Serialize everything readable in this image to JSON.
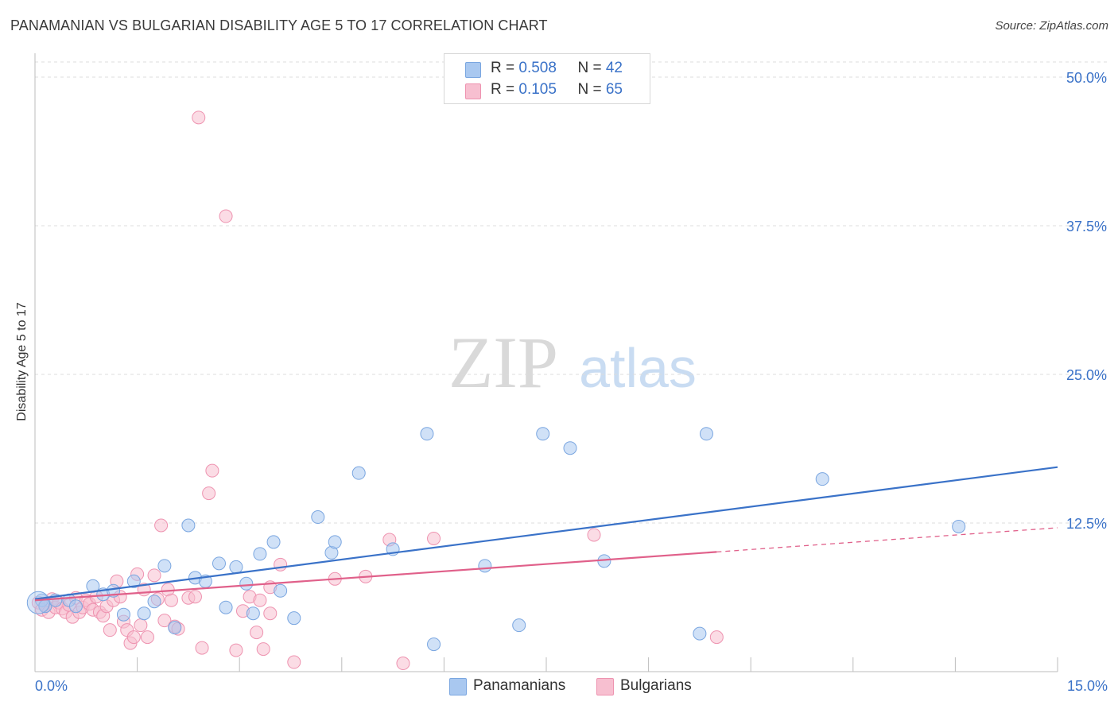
{
  "title": "PANAMANIAN VS BULGARIAN DISABILITY AGE 5 TO 17 CORRELATION CHART",
  "source": "Source: ZipAtlas.com",
  "watermark": {
    "zip": "ZIP",
    "atlas": "atlas"
  },
  "legend": {
    "rows": [
      {
        "r_label": "R = ",
        "r_value": "0.508",
        "n_label": "N = ",
        "n_value": "42",
        "color": "#a9c8f0",
        "border": "#7aa6e0"
      },
      {
        "r_label": "R = ",
        "r_value": "0.105",
        "n_label": "N = ",
        "n_value": "65",
        "color": "#f7bfd0",
        "border": "#ee93b0"
      }
    ]
  },
  "bottom_legend": {
    "panamanians": "Panamanians",
    "bulgarians": "Bulgarians"
  },
  "colors": {
    "blue": "#3a72c8",
    "pink": "#e0608a",
    "blue_fill": "#a9c8f0",
    "pink_fill": "#f7bfd0",
    "grid": "#dcdcdc"
  },
  "chart_data": {
    "type": "scatter",
    "title": "PANAMANIAN VS BULGARIAN DISABILITY AGE 5 TO 17 CORRELATION CHART",
    "xlabel": "",
    "ylabel": "Disability Age 5 to 17",
    "xlim": [
      0,
      15
    ],
    "ylim": [
      0,
      50
    ],
    "x_tick_labels": [
      "0.0%",
      "15.0%"
    ],
    "y_ticks": [
      12.5,
      25.0,
      37.5,
      50.0
    ],
    "y_tick_labels": [
      "12.5%",
      "25.0%",
      "37.5%",
      "50.0%"
    ],
    "grid": true,
    "legend_position": "top-center",
    "series": [
      {
        "name": "Panamanians",
        "r": 0.508,
        "n": 42,
        "trend": {
          "x": [
            0,
            15
          ],
          "y": [
            6.1,
            17.2
          ],
          "dashed_from": null
        },
        "points": [
          [
            0.1,
            6.0
          ],
          [
            0.15,
            5.5
          ],
          [
            0.3,
            6.0
          ],
          [
            0.5,
            6.0
          ],
          [
            0.6,
            5.5
          ],
          [
            0.85,
            7.2
          ],
          [
            1.0,
            6.5
          ],
          [
            1.15,
            6.8
          ],
          [
            1.3,
            4.8
          ],
          [
            1.45,
            7.6
          ],
          [
            1.6,
            4.9
          ],
          [
            1.75,
            5.9
          ],
          [
            1.9,
            8.9
          ],
          [
            2.05,
            3.7
          ],
          [
            2.25,
            12.3
          ],
          [
            2.35,
            7.9
          ],
          [
            2.5,
            7.6
          ],
          [
            2.7,
            9.1
          ],
          [
            2.8,
            5.4
          ],
          [
            2.95,
            8.8
          ],
          [
            3.1,
            7.4
          ],
          [
            3.2,
            4.9
          ],
          [
            3.3,
            9.9
          ],
          [
            3.5,
            10.9
          ],
          [
            3.6,
            6.8
          ],
          [
            3.8,
            4.5
          ],
          [
            4.15,
            13.0
          ],
          [
            4.35,
            10.0
          ],
          [
            4.4,
            10.9
          ],
          [
            4.75,
            16.7
          ],
          [
            5.25,
            10.3
          ],
          [
            5.75,
            20.0
          ],
          [
            5.85,
            2.3
          ],
          [
            6.6,
            8.9
          ],
          [
            7.1,
            3.9
          ],
          [
            7.45,
            20.0
          ],
          [
            7.85,
            18.8
          ],
          [
            8.35,
            9.3
          ],
          [
            9.75,
            3.2
          ],
          [
            9.85,
            20.0
          ],
          [
            11.55,
            16.2
          ],
          [
            13.55,
            12.2
          ]
        ]
      },
      {
        "name": "Bulgarians",
        "r": 0.105,
        "n": 65,
        "trend": {
          "x": [
            0,
            15
          ],
          "y": [
            6.0,
            12.1
          ],
          "dashed_from": 10.0
        },
        "points": [
          [
            0.05,
            5.8
          ],
          [
            0.1,
            5.2
          ],
          [
            0.15,
            5.6
          ],
          [
            0.2,
            5.0
          ],
          [
            0.25,
            6.1
          ],
          [
            0.3,
            5.4
          ],
          [
            0.35,
            5.8
          ],
          [
            0.4,
            5.3
          ],
          [
            0.45,
            5.0
          ],
          [
            0.5,
            5.6
          ],
          [
            0.55,
            4.6
          ],
          [
            0.6,
            6.2
          ],
          [
            0.65,
            5.0
          ],
          [
            0.7,
            5.4
          ],
          [
            0.75,
            6.0
          ],
          [
            0.8,
            5.7
          ],
          [
            0.85,
            5.2
          ],
          [
            0.9,
            6.3
          ],
          [
            0.95,
            5.0
          ],
          [
            1.0,
            4.7
          ],
          [
            1.05,
            5.5
          ],
          [
            1.1,
            3.5
          ],
          [
            1.15,
            6.0
          ],
          [
            1.2,
            7.6
          ],
          [
            1.25,
            6.3
          ],
          [
            1.3,
            4.2
          ],
          [
            1.35,
            3.5
          ],
          [
            1.4,
            2.4
          ],
          [
            1.45,
            2.9
          ],
          [
            1.5,
            8.2
          ],
          [
            1.55,
            3.9
          ],
          [
            1.6,
            6.9
          ],
          [
            1.65,
            2.9
          ],
          [
            1.75,
            8.1
          ],
          [
            1.8,
            6.1
          ],
          [
            1.85,
            12.3
          ],
          [
            1.9,
            4.3
          ],
          [
            1.95,
            6.9
          ],
          [
            2.0,
            6.0
          ],
          [
            2.05,
            3.8
          ],
          [
            2.1,
            3.6
          ],
          [
            2.25,
            6.2
          ],
          [
            2.35,
            6.3
          ],
          [
            2.4,
            46.6
          ],
          [
            2.45,
            2.0
          ],
          [
            2.55,
            15.0
          ],
          [
            2.6,
            16.9
          ],
          [
            2.8,
            38.3
          ],
          [
            2.95,
            1.8
          ],
          [
            3.05,
            5.1
          ],
          [
            3.15,
            6.3
          ],
          [
            3.25,
            3.3
          ],
          [
            3.35,
            1.9
          ],
          [
            3.45,
            4.9
          ],
          [
            3.45,
            7.1
          ],
          [
            3.6,
            9.0
          ],
          [
            3.8,
            0.8
          ],
          [
            4.4,
            7.8
          ],
          [
            4.85,
            8.0
          ],
          [
            5.2,
            11.1
          ],
          [
            5.4,
            0.7
          ],
          [
            5.85,
            11.2
          ],
          [
            8.2,
            11.5
          ],
          [
            10.0,
            2.9
          ],
          [
            3.3,
            6.0
          ]
        ]
      }
    ]
  }
}
